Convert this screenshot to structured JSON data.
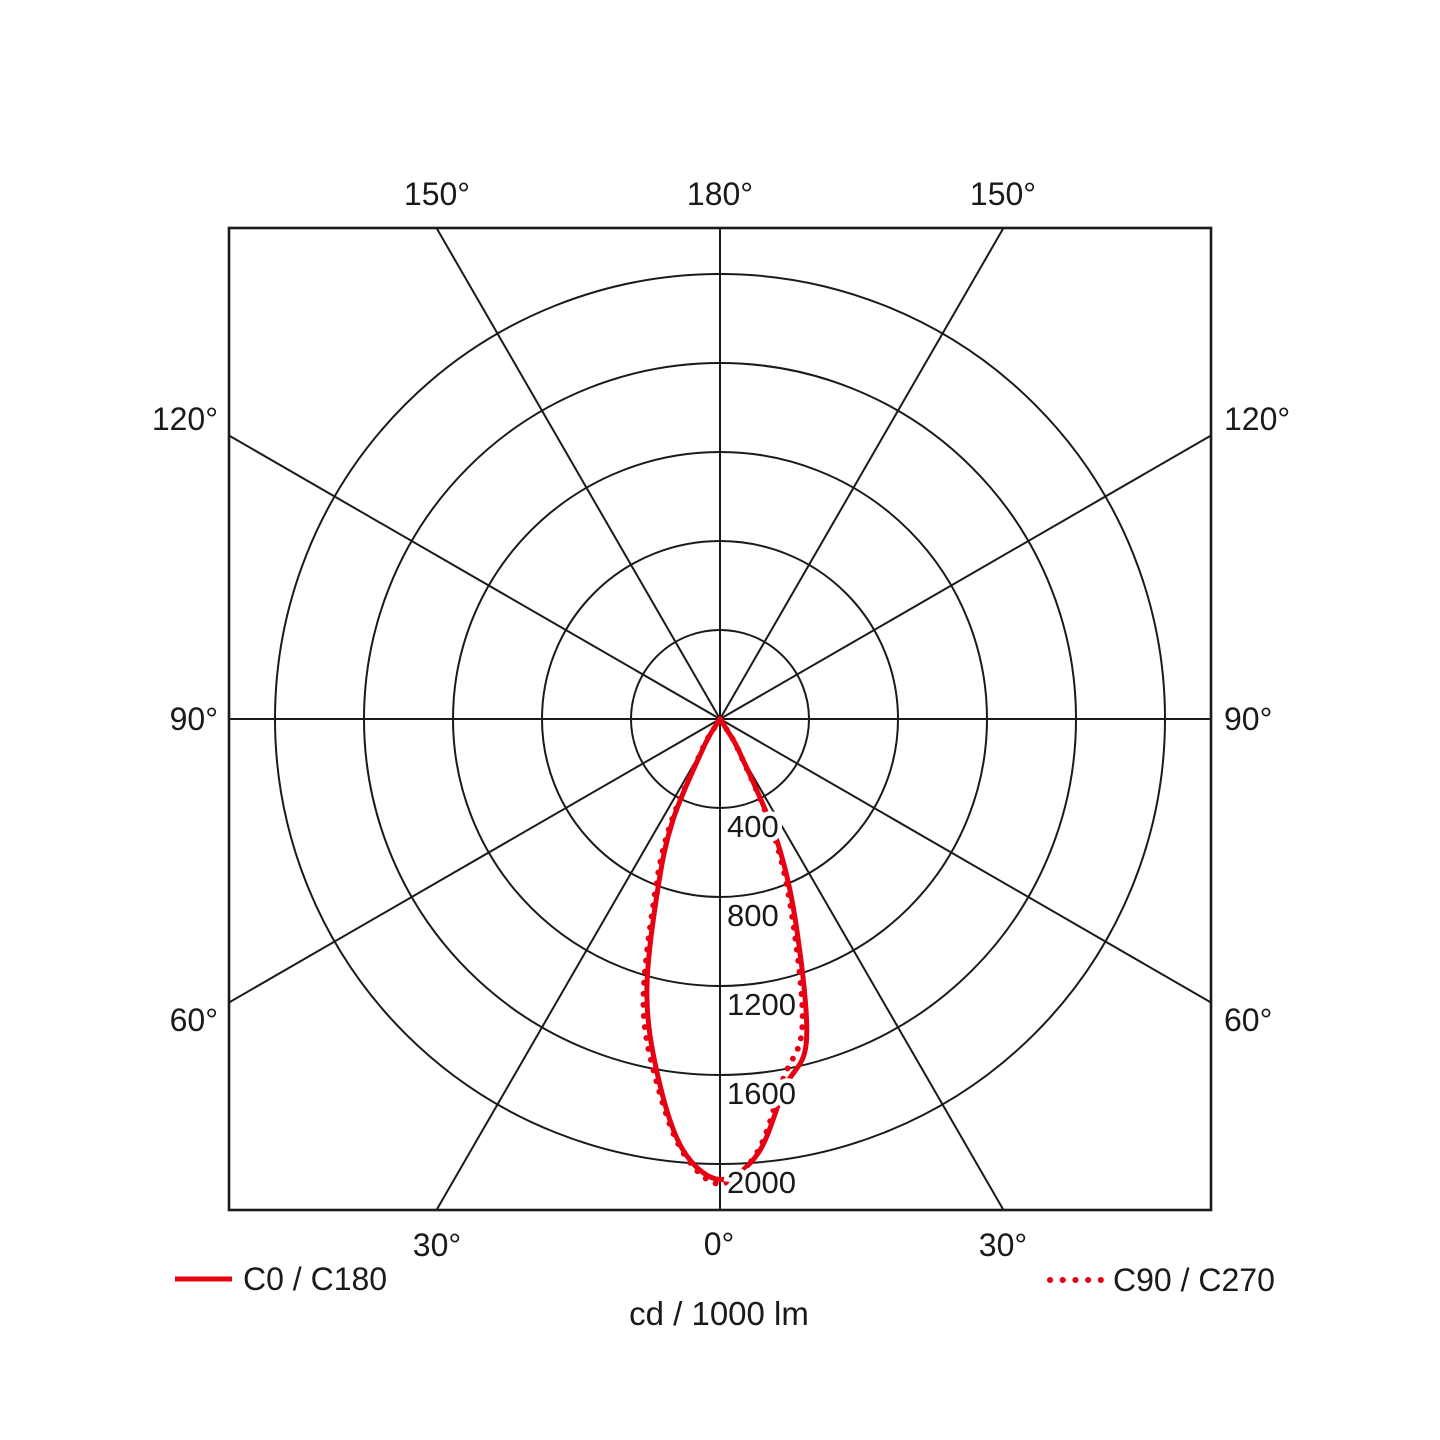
{
  "colors": {
    "curve_red": "#e60012",
    "grid_black": "#1a1a1a",
    "text": "#1a1a1a",
    "background": "#ffffff"
  },
  "angle_labels": {
    "top": [
      "150°",
      "180°",
      "150°"
    ],
    "left": [
      "120°",
      "90°",
      "60°"
    ],
    "right": [
      "120°",
      "90°",
      "60°"
    ],
    "bottom": [
      "30°",
      "0°",
      "30°"
    ]
  },
  "radial_tick_labels": [
    "400",
    "800",
    "1200",
    "1600",
    "2000"
  ],
  "caption": "cd / 1000 lm",
  "legend": {
    "items": [
      {
        "label": "C0 / C180",
        "style": "solid"
      },
      {
        "label": "C90 / C270",
        "style": "dotted"
      }
    ]
  },
  "chart_data": {
    "type": "line",
    "subtype": "polar-photometric-distribution",
    "title": "",
    "units": "cd / 1000 lm",
    "angle_axis": {
      "spoke_step_deg": 30,
      "through_line_angles_deg": [
        0,
        30,
        60,
        90,
        120,
        150
      ],
      "perimeter_labels_deg": [
        0,
        30,
        60,
        90,
        120,
        150,
        180
      ]
    },
    "r_axis": {
      "ticks": [
        400,
        800,
        1200,
        1600,
        2000
      ],
      "max": 2200,
      "grid": true
    },
    "gamma_deg": [
      0,
      5,
      10,
      15,
      20,
      25,
      30,
      32.5,
      35,
      40
    ],
    "series": [
      {
        "name": "C0 / C180",
        "style": "solid",
        "right_cd": [
          2070,
          1960,
          1680,
          1500,
          1010,
          610,
          190,
          60,
          0,
          0
        ],
        "left_cd": [
          2070,
          1940,
          1620,
          1270,
          820,
          500,
          150,
          45,
          0,
          0
        ]
      },
      {
        "name": "C90 / C270",
        "style": "dotted",
        "right_cd": [
          2090,
          1950,
          1640,
          1430,
          950,
          570,
          175,
          55,
          0,
          0
        ],
        "left_cd": [
          2090,
          1950,
          1650,
          1330,
          870,
          540,
          170,
          55,
          0,
          0
        ]
      }
    ],
    "legend_position": "bottom"
  }
}
